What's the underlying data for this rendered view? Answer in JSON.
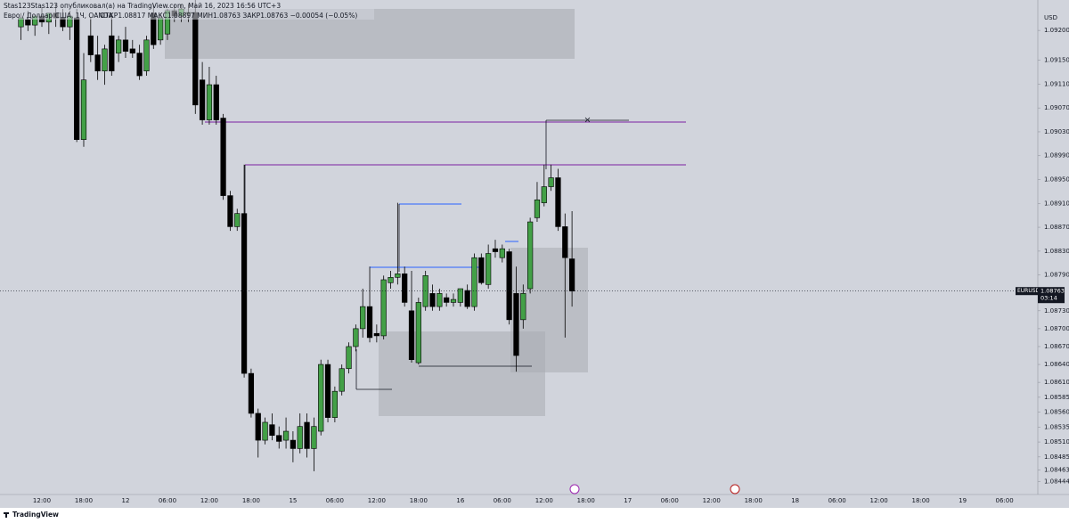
{
  "header": {
    "author": "Stas123Stas123 опубликовал(а) на TradingView.com, Май 16, 2023 16:56 UTC+3"
  },
  "footer": {
    "brand": "TradingView"
  },
  "chart_data": {
    "type": "candlestick",
    "title": "Евро / Доллар США, 1Ч, OANDA",
    "subtitle": "ОТКР1.08817 МАКС1.08897 МИН1.08763 ЗАКР1.08763 −0.00054 (−0.05%)",
    "currency": "USD",
    "symbol": "EURUSD",
    "countdown": "03:14",
    "last_price": 1.08763,
    "up_color": "#43a047",
    "down_color": "#000000",
    "grid": false,
    "ylim": [
      1.08422,
      1.09251
    ],
    "yticks": [
      {
        "value": 1.092,
        "label": "1.09200"
      },
      {
        "value": 1.0915,
        "label": "1.09150"
      },
      {
        "value": 1.0911,
        "label": "1.09110"
      },
      {
        "value": 1.0907,
        "label": "1.09070"
      },
      {
        "value": 1.0903,
        "label": "1.09030"
      },
      {
        "value": 1.0899,
        "label": "1.08990"
      },
      {
        "value": 1.0895,
        "label": "1.08950"
      },
      {
        "value": 1.0891,
        "label": "1.08910"
      },
      {
        "value": 1.0887,
        "label": "1.08870"
      },
      {
        "value": 1.0883,
        "label": "1.08830"
      },
      {
        "value": 1.0879,
        "label": "1.08790"
      },
      {
        "value": 1.0873,
        "label": "1.08730"
      },
      {
        "value": 1.087,
        "label": "1.08700"
      },
      {
        "value": 1.0867,
        "label": "1.08670"
      },
      {
        "value": 1.0864,
        "label": "1.08640"
      },
      {
        "value": 1.0861,
        "label": "1.08610"
      },
      1.08585,
      {
        "value": 1.0856,
        "label": "1.08560"
      },
      1.08535,
      {
        "value": 1.0851,
        "label": "1.08510"
      },
      1.08485,
      1.08463,
      1.08444
    ],
    "categories": [
      null,
      null,
      null,
      "12:00",
      null,
      null,
      null,
      null,
      null,
      "18:00",
      null,
      null,
      null,
      null,
      null,
      "12",
      null,
      null,
      null,
      null,
      null,
      "06:00",
      null,
      null,
      null,
      null,
      null,
      "12:00",
      null,
      null,
      null,
      null,
      null,
      "18:00",
      null,
      null,
      null,
      null,
      null,
      "15",
      null,
      null,
      null,
      null,
      null,
      "06:00",
      null,
      null,
      null,
      null,
      null,
      "12:00",
      null,
      null,
      null,
      null,
      null,
      "18:00",
      null,
      null,
      null,
      null,
      null,
      "16",
      null,
      null,
      null,
      null,
      null,
      "06:00",
      null,
      null,
      null,
      null,
      null,
      "12:00",
      null,
      null,
      null,
      null,
      null,
      "18:00",
      null,
      null,
      null,
      null,
      null,
      "17",
      null,
      null,
      null,
      null,
      null,
      "06:00",
      null,
      null,
      null,
      null,
      null,
      "12:00",
      null,
      null,
      null,
      null,
      null,
      "18:00",
      null,
      null,
      null,
      null,
      null,
      "18",
      null,
      null,
      null,
      null,
      null,
      "06:00",
      null,
      null,
      null,
      null,
      null,
      "12:00",
      null,
      null,
      null,
      null,
      null,
      "18:00",
      null,
      null,
      null,
      null,
      null,
      "19",
      null,
      null,
      null,
      null,
      null,
      "06:00",
      null,
      null,
      null
    ],
    "open": [
      1.09206,
      1.09218,
      1.09209,
      1.09224,
      1.09214,
      1.09229,
      1.09221,
      1.09206,
      1.09221,
      1.09017,
      1.09191,
      1.09159,
      1.09132,
      1.09191,
      1.09162,
      1.09184,
      1.09169,
      1.09162,
      1.09132,
      1.09229,
      1.09184,
      1.09194,
      1.09233,
      1.09224,
      1.09229,
      1.0923,
      1.09117,
      1.0905,
      1.09109,
      1.09053,
      1.08923,
      1.08871,
      1.08893,
      1.08625,
      1.08558,
      1.08513,
      1.08539,
      1.08521,
      1.08513,
      1.08513,
      1.08499,
      1.08543,
      1.08499,
      1.08528,
      1.0864,
      1.08551,
      1.08595,
      1.08633,
      1.0867,
      1.087,
      1.08737,
      1.08692,
      1.08688,
      1.08777,
      1.08786,
      1.08792,
      1.0873,
      1.08643,
      1.08737,
      1.08759,
      1.08737,
      1.08752,
      1.08744,
      1.08744,
      1.08764,
      1.08737,
      1.08819,
      1.08774,
      1.08834,
      1.08819,
      1.08829,
      1.08759,
      1.08715,
      1.08767,
      1.08886,
      1.08911,
      1.08938,
      1.08953,
      1.08871,
      1.08817,
      null,
      null,
      null,
      null,
      null,
      null,
      null,
      null,
      null,
      null,
      null,
      null,
      null,
      null,
      null,
      null,
      null,
      null,
      null,
      null,
      null,
      null,
      null,
      null,
      null,
      null,
      null,
      null,
      null,
      null,
      null,
      null,
      null,
      null,
      null,
      null,
      null,
      null,
      null,
      null,
      null,
      null,
      null,
      null,
      null,
      null,
      null,
      null,
      null,
      null,
      null,
      null,
      null,
      null,
      null,
      null,
      null,
      null,
      null,
      null,
      null,
      null,
      null,
      null,
      null
    ],
    "high": [
      1.09229,
      1.09233,
      1.09224,
      1.09239,
      1.09229,
      1.09244,
      1.09236,
      1.09233,
      1.09236,
      1.09162,
      1.09221,
      1.09191,
      1.09176,
      1.09229,
      1.09191,
      1.09206,
      1.09184,
      1.09176,
      1.09191,
      1.09244,
      1.09229,
      1.09236,
      1.09244,
      1.09244,
      1.09244,
      1.09251,
      1.09147,
      1.09139,
      1.09124,
      1.0906,
      1.08931,
      1.08901,
      1.08975,
      1.08633,
      1.08566,
      1.08551,
      1.08558,
      1.08536,
      1.08551,
      1.08528,
      1.08558,
      1.08558,
      1.08551,
      1.08648,
      1.08648,
      1.08603,
      1.0864,
      1.08677,
      1.08707,
      1.08767,
      1.08804,
      1.08707,
      1.08789,
      1.08797,
      1.08911,
      1.08804,
      1.08797,
      1.08752,
      1.08797,
      1.08774,
      1.08767,
      1.08759,
      1.08759,
      1.08767,
      1.08774,
      1.08826,
      1.08826,
      1.08841,
      1.08849,
      1.08841,
      1.08834,
      1.08804,
      1.08774,
      1.08886,
      1.08946,
      1.08975,
      1.08975,
      1.08968,
      1.08893,
      1.08897,
      null,
      null,
      null,
      null,
      null,
      null,
      null,
      null,
      null,
      null,
      null,
      null,
      null,
      null,
      null,
      null,
      null,
      null,
      null,
      null,
      null,
      null,
      null,
      null,
      null,
      null,
      null,
      null,
      null,
      null,
      null,
      null,
      null,
      null,
      null,
      null,
      null,
      null,
      null,
      null,
      null,
      null,
      null,
      null,
      null,
      null,
      null,
      null,
      null,
      null,
      null,
      null,
      null,
      null,
      null,
      null,
      null,
      null,
      null,
      null,
      null,
      null,
      null,
      null,
      null
    ],
    "low": [
      1.09184,
      1.09199,
      1.09191,
      1.09206,
      1.09194,
      1.09206,
      1.09199,
      1.09184,
      1.09013,
      1.09005,
      1.09147,
      1.09117,
      1.09109,
      1.09124,
      1.09147,
      1.09154,
      1.09154,
      1.09117,
      1.09124,
      1.09169,
      1.09176,
      1.09184,
      1.09214,
      1.09214,
      1.09214,
      1.0906,
      1.09042,
      1.09042,
      1.09042,
      1.08916,
      1.08864,
      1.08864,
      1.08618,
      1.08551,
      1.08484,
      1.08506,
      1.08513,
      1.08499,
      1.08499,
      1.08476,
      1.08491,
      1.08484,
      1.08461,
      1.08521,
      1.08543,
      1.08543,
      1.08588,
      1.08625,
      1.08662,
      1.08685,
      1.08677,
      1.08677,
      1.08682,
      1.08767,
      1.08774,
      1.08737,
      1.08643,
      1.0864,
      1.0873,
      1.0873,
      1.0873,
      1.08737,
      1.08737,
      1.08737,
      1.08733,
      1.0873,
      1.08774,
      1.08767,
      1.08819,
      1.08811,
      1.08707,
      1.08628,
      1.087,
      1.08759,
      1.08879,
      1.08905,
      1.08931,
      1.08864,
      1.08685,
      1.08737,
      null,
      null,
      null,
      null,
      null,
      null,
      null,
      null,
      null,
      null,
      null,
      null,
      null,
      null,
      null,
      null,
      null,
      null,
      null,
      null,
      null,
      null,
      null,
      null,
      null,
      null,
      null,
      null,
      null,
      null,
      null,
      null,
      null,
      null,
      null,
      null,
      null,
      null,
      null,
      null,
      null,
      null,
      null,
      null,
      null,
      null,
      null,
      null,
      null,
      null,
      null,
      null,
      null,
      null,
      null,
      null,
      null,
      null,
      null,
      null,
      null,
      null,
      null,
      null,
      null
    ],
    "close": [
      1.09221,
      1.09209,
      1.09224,
      1.09214,
      1.09229,
      1.09221,
      1.09206,
      1.09224,
      1.09017,
      1.09117,
      1.09159,
      1.09132,
      1.09169,
      1.09132,
      1.09184,
      1.09165,
      1.09162,
      1.09124,
      1.09184,
      1.09176,
      1.09221,
      1.09233,
      1.09224,
      1.09236,
      1.0923,
      1.09075,
      1.0905,
      1.09109,
      1.0905,
      1.08923,
      1.08871,
      1.08893,
      1.08625,
      1.08558,
      1.08513,
      1.08543,
      1.08521,
      1.08511,
      1.08528,
      1.08499,
      1.08536,
      1.08499,
      1.08536,
      1.0864,
      1.08551,
      1.08595,
      1.08633,
      1.0867,
      1.087,
      1.08737,
      1.08685,
      1.08688,
      1.08782,
      1.08786,
      1.08792,
      1.08744,
      1.08648,
      1.08744,
      1.08789,
      1.08737,
      1.08759,
      1.08744,
      1.08749,
      1.08767,
      1.08737,
      1.08819,
      1.08777,
      1.08826,
      1.08829,
      1.08834,
      1.08715,
      1.08655,
      1.08759,
      1.08879,
      1.08916,
      1.08938,
      1.08953,
      1.08871,
      1.08819,
      1.08763,
      null,
      null,
      null,
      null,
      null,
      null,
      null,
      null,
      null,
      null,
      null,
      null,
      null,
      null,
      null,
      null,
      null,
      null,
      null,
      null,
      null,
      null,
      null,
      null,
      null,
      null,
      null,
      null,
      null,
      null,
      null,
      null,
      null,
      null,
      null,
      null,
      null,
      null,
      null,
      null,
      null,
      null,
      null,
      null,
      null,
      null,
      null,
      null,
      null,
      null,
      null,
      null,
      null,
      null,
      null,
      null,
      null,
      null,
      null,
      null,
      null,
      null,
      null,
      null,
      null
    ]
  }
}
